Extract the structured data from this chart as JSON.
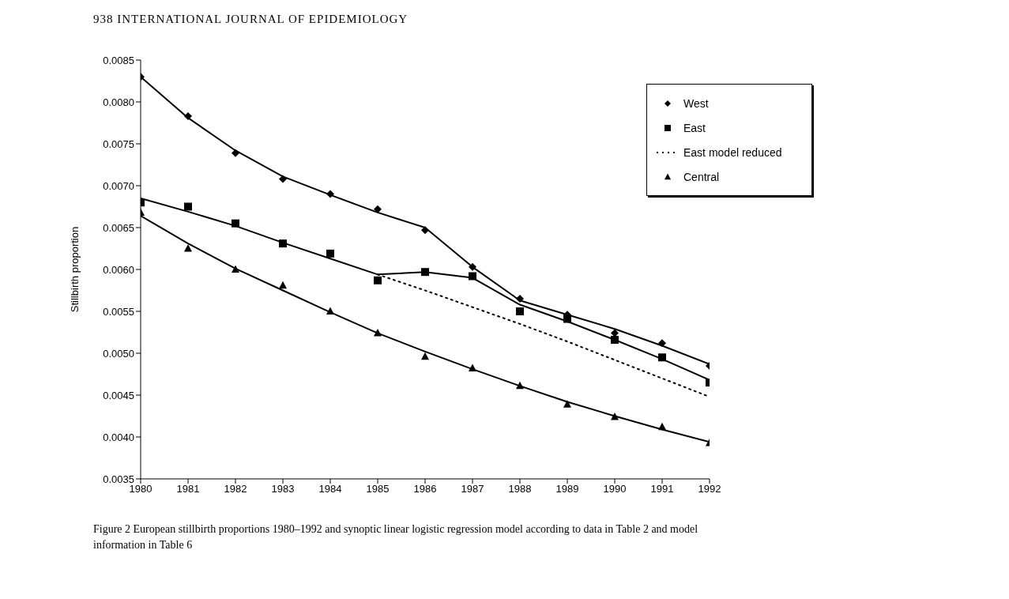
{
  "chart_data": {
    "type": "line",
    "ylabel": "Stillbirth proportion",
    "x": [
      1980,
      1981,
      1982,
      1983,
      1984,
      1985,
      1986,
      1987,
      1988,
      1989,
      1990,
      1991,
      1992
    ],
    "xlim": [
      1980,
      1992
    ],
    "xticks": [
      1980,
      1981,
      1982,
      1983,
      1984,
      1985,
      1986,
      1987,
      1988,
      1989,
      1990,
      1991,
      1992
    ],
    "ylim": [
      0.0035,
      0.0085
    ],
    "yticks": [
      {
        "value": 0.0035,
        "label": "0.0035"
      },
      {
        "value": 0.004,
        "label": "0.0040"
      },
      {
        "value": 0.0045,
        "label": "0.0045"
      },
      {
        "value": 0.005,
        "label": "0.0050"
      },
      {
        "value": 0.0055,
        "label": "0.0055"
      },
      {
        "value": 0.006,
        "label": "0.0060"
      },
      {
        "value": 0.0065,
        "label": "0.0065"
      },
      {
        "value": 0.007,
        "label": "0.0070"
      },
      {
        "value": 0.0075,
        "label": "0.0075"
      },
      {
        "value": 0.008,
        "label": "0.0080"
      },
      {
        "value": 0.0085,
        "label": "0.0085"
      }
    ],
    "grid": false,
    "legend": "top right",
    "annotations": [
      "938 INTERNATIONAL JOURNAL OF EPIDEMIOLOGY",
      "Figure 2 European stillbirth proportions 1980–1992 and synoptic linear logistic regression model according to data in Table 2 and model information in Table 6"
    ],
    "series": [
      {
        "color": "#000000",
        "line_style": "solid",
        "marker": "none",
        "values": [
          0.0083,
          0.00781,
          0.00742,
          0.00711,
          0.00689,
          0.00668,
          0.0065,
          0.00603,
          0.00563,
          0.00546,
          0.00529,
          0.00509,
          0.00487
        ]
      },
      {
        "color": "#000000",
        "line_style": "solid",
        "marker": "none",
        "values": [
          0.00685,
          0.00669,
          0.00652,
          0.00632,
          0.00613,
          0.00594,
          0.00597,
          0.0059,
          0.00558,
          0.00538,
          0.00516,
          0.00493,
          0.00468
        ]
      },
      {
        "color": "#000000",
        "line_style": "solid",
        "marker": "none",
        "values": [
          0.00664,
          0.00631,
          0.00601,
          0.00575,
          0.00549,
          0.00524,
          0.00502,
          0.00481,
          0.00461,
          0.00442,
          0.00425,
          0.00409,
          0.00394
        ]
      },
      {
        "type": "scatter",
        "name": "West",
        "color": "#000000",
        "marker": "diamond",
        "values": [
          0.0083,
          0.00783,
          0.00739,
          0.00708,
          0.0069,
          0.00672,
          0.00647,
          0.00603,
          0.00565,
          0.00546,
          0.00524,
          0.00512,
          0.00485
        ]
      },
      {
        "type": "scatter",
        "name": "East",
        "color": "#000000",
        "marker": "square",
        "values": [
          0.0068,
          0.00675,
          0.00655,
          0.00631,
          0.00619,
          0.00587,
          0.00597,
          0.00592,
          0.0055,
          0.00541,
          0.00516,
          0.00495,
          0.00465
        ]
      },
      {
        "name": "East model reduced",
        "color": "#000000",
        "line_style": "dotted",
        "marker": "none",
        "x": [
          1985,
          1986,
          1987,
          1988,
          1989,
          1990,
          1991,
          1992
        ],
        "values": [
          0.00594,
          0.00575,
          0.00555,
          0.00535,
          0.00514,
          0.00492,
          0.0047,
          0.00448
        ]
      },
      {
        "type": "scatter",
        "name": "Central",
        "color": "#000000",
        "marker": "triangle",
        "values": [
          0.00668,
          0.00625,
          0.006,
          0.00581,
          0.0055,
          0.00524,
          0.00496,
          0.00482,
          0.00461,
          0.00439,
          0.00424,
          0.00412,
          0.00393
        ]
      }
    ]
  }
}
